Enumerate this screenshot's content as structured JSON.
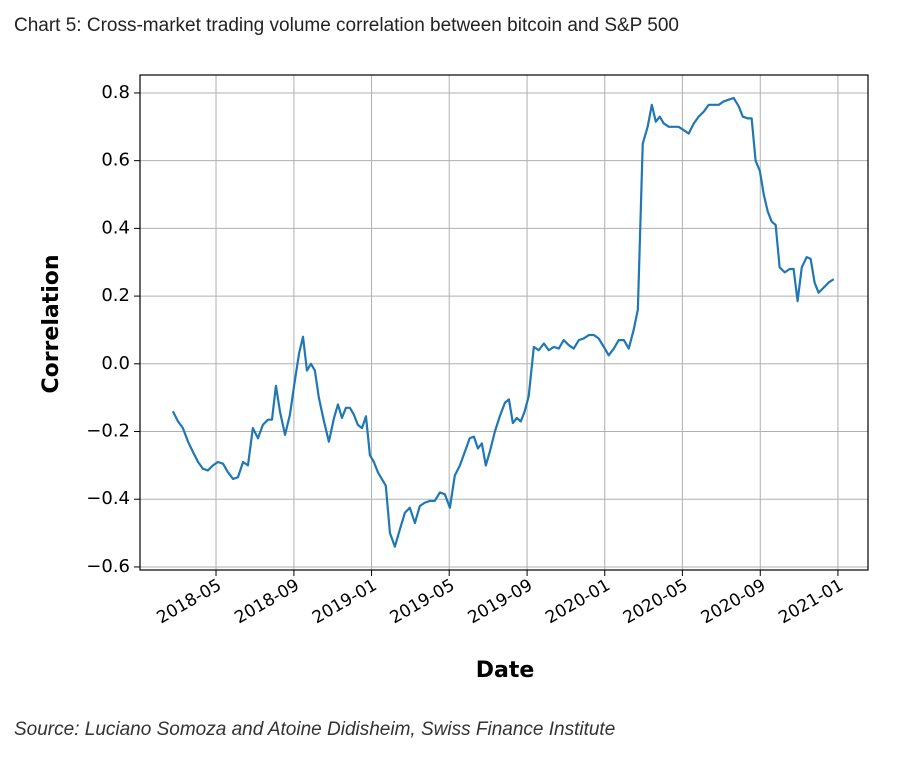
{
  "chart_data": {
    "type": "line",
    "title": "Chart 5: Cross-market trading volume correlation between bitcoin and S&P 500",
    "source": "Source: Luciano Somoza and Atoine Didisheim, Swiss Finance Institute",
    "xlabel": "Date",
    "ylabel": "Correlation",
    "grid": true,
    "xlim": [
      2018.007,
      2021.129
    ],
    "ylim": [
      -0.609,
      0.853
    ],
    "xticks": [
      {
        "value": 2018.333,
        "label": "2018-05"
      },
      {
        "value": 2018.667,
        "label": "2018-09"
      },
      {
        "value": 2019.0,
        "label": "2019-01"
      },
      {
        "value": 2019.333,
        "label": "2019-05"
      },
      {
        "value": 2019.667,
        "label": "2019-09"
      },
      {
        "value": 2020.0,
        "label": "2020-01"
      },
      {
        "value": 2020.333,
        "label": "2020-05"
      },
      {
        "value": 2020.667,
        "label": "2020-09"
      },
      {
        "value": 2021.0,
        "label": "2021-01"
      }
    ],
    "yticks": [
      {
        "value": -0.6,
        "label": "−0.6"
      },
      {
        "value": -0.4,
        "label": "−0.4"
      },
      {
        "value": -0.2,
        "label": "−0.2"
      },
      {
        "value": 0.0,
        "label": "0.0"
      },
      0.2,
      0.4,
      0.6,
      0.8
    ],
    "x": [
      2018.148,
      2018.17,
      2018.191,
      2018.213,
      2018.234,
      2018.256,
      2018.277,
      2018.298,
      2018.32,
      2018.341,
      2018.363,
      2018.384,
      2018.406,
      2018.427,
      2018.449,
      2018.47,
      2018.491,
      2018.513,
      2018.534,
      2018.556,
      2018.573,
      2018.59,
      2018.607,
      2018.629,
      2018.65,
      2018.671,
      2018.689,
      2018.706,
      2018.723,
      2018.74,
      2018.757,
      2018.774,
      2018.796,
      2018.817,
      2018.839,
      2018.856,
      2018.873,
      2018.89,
      2018.907,
      2018.924,
      2018.941,
      2018.959,
      2018.976,
      2018.993,
      2019.01,
      2019.027,
      2019.044,
      2019.061,
      2019.079,
      2019.1,
      2019.121,
      2019.143,
      2019.164,
      2019.186,
      2019.207,
      2019.229,
      2019.25,
      2019.271,
      2019.293,
      2019.314,
      2019.336,
      2019.357,
      2019.379,
      2019.4,
      2019.421,
      2019.439,
      2019.456,
      2019.473,
      2019.49,
      2019.507,
      2019.529,
      2019.55,
      2019.572,
      2019.589,
      2019.606,
      2019.623,
      2019.64,
      2019.657,
      2019.674,
      2019.696,
      2019.717,
      2019.739,
      2019.76,
      2019.782,
      2019.803,
      2019.824,
      2019.846,
      2019.867,
      2019.889,
      2019.91,
      2019.932,
      2019.953,
      2019.974,
      2019.996,
      2020.017,
      2020.039,
      2020.06,
      2020.082,
      2020.103,
      2020.124,
      2020.142,
      2020.163,
      2020.184,
      2020.202,
      2020.219,
      2020.236,
      2020.253,
      2020.275,
      2020.296,
      2020.317,
      2020.339,
      2020.36,
      2020.382,
      2020.403,
      2020.425,
      2020.446,
      2020.467,
      2020.489,
      2020.51,
      2020.532,
      2020.553,
      2020.575,
      2020.592,
      2020.613,
      2020.63,
      2020.647,
      2020.665,
      2020.682,
      2020.699,
      2020.716,
      2020.733,
      2020.75,
      2020.772,
      2020.793,
      2020.81,
      2020.827,
      2020.845,
      2020.866,
      2020.883,
      2020.9,
      2020.917,
      2020.939,
      2020.96,
      2020.982
    ],
    "series": [
      {
        "color": "#1f77b4",
        "values": [
          -0.14,
          -0.17,
          -0.19,
          -0.23,
          -0.26,
          -0.29,
          -0.31,
          -0.315,
          -0.3,
          -0.29,
          -0.295,
          -0.32,
          -0.34,
          -0.335,
          -0.29,
          -0.3,
          -0.19,
          -0.22,
          -0.18,
          -0.165,
          -0.165,
          -0.065,
          -0.14,
          -0.21,
          -0.15,
          -0.05,
          0.03,
          0.08,
          -0.02,
          0.0,
          -0.02,
          -0.1,
          -0.17,
          -0.23,
          -0.16,
          -0.12,
          -0.16,
          -0.13,
          -0.13,
          -0.15,
          -0.18,
          -0.19,
          -0.155,
          -0.27,
          -0.29,
          -0.32,
          -0.34,
          -0.36,
          -0.5,
          -0.54,
          -0.49,
          -0.44,
          -0.425,
          -0.47,
          -0.42,
          -0.41,
          -0.405,
          -0.405,
          -0.38,
          -0.385,
          -0.425,
          -0.33,
          -0.3,
          -0.26,
          -0.22,
          -0.215,
          -0.25,
          -0.235,
          -0.3,
          -0.26,
          -0.2,
          -0.155,
          -0.115,
          -0.105,
          -0.175,
          -0.16,
          -0.17,
          -0.14,
          -0.095,
          0.05,
          0.04,
          0.06,
          0.04,
          0.05,
          0.045,
          0.07,
          0.055,
          0.045,
          0.07,
          0.075,
          0.085,
          0.085,
          0.075,
          0.05,
          0.025,
          0.045,
          0.07,
          0.07,
          0.045,
          0.1,
          0.16,
          0.65,
          0.7,
          0.765,
          0.715,
          0.73,
          0.71,
          0.7,
          0.7,
          0.7,
          0.69,
          0.68,
          0.71,
          0.73,
          0.745,
          0.765,
          0.765,
          0.765,
          0.775,
          0.78,
          0.785,
          0.76,
          0.73,
          0.725,
          0.725,
          0.6,
          0.57,
          0.5,
          0.45,
          0.42,
          0.41,
          0.285,
          0.27,
          0.28,
          0.28,
          0.185,
          0.285,
          0.315,
          0.31,
          0.24,
          0.21,
          0.225,
          0.24,
          0.25
        ]
      }
    ]
  }
}
